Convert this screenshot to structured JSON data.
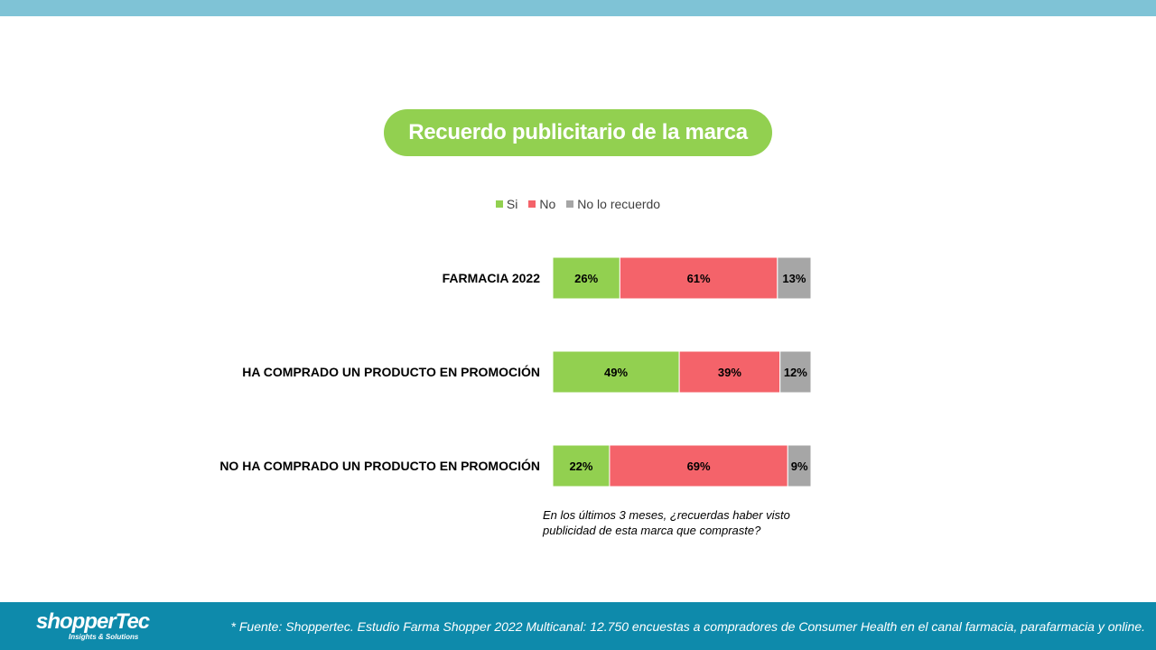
{
  "colors": {
    "si": "#92d050",
    "no": "#f4636a",
    "no_recuerdo": "#a6a6a6",
    "title_bg": "#92d050",
    "top_bar": "#7fc3d6",
    "footer_bg": "#0e8aab"
  },
  "title": "Recuerdo publicitario de la marca",
  "legend": {
    "si": "Si",
    "no": "No",
    "no_recuerdo": "No lo recuerdo"
  },
  "chart_data": {
    "type": "bar",
    "orientation": "horizontal",
    "stacked": true,
    "percent": true,
    "categories": [
      "FARMACIA 2022",
      "HA COMPRADO UN PRODUCTO EN PROMOCIÓN",
      "NO HA COMPRADO UN PRODUCTO EN PROMOCIÓN"
    ],
    "series": [
      {
        "name": "Si",
        "values": [
          26,
          49,
          22
        ],
        "labels": [
          "26%",
          "49%",
          "22%"
        ]
      },
      {
        "name": "No",
        "values": [
          61,
          39,
          69
        ],
        "labels": [
          "61%",
          "39%",
          "69%"
        ]
      },
      {
        "name": "No lo recuerdo",
        "values": [
          13,
          12,
          9
        ],
        "labels": [
          "13%",
          "12%",
          "9%"
        ]
      }
    ],
    "xlim": [
      0,
      100
    ],
    "legend_position": "top"
  },
  "question": "En los últimos 3 meses, ¿recuerdas haber visto publicidad de esta marca que compraste?",
  "footer": {
    "logo": "shopperTec",
    "logo_sub": "Insights & Solutions",
    "source": "* Fuente: Shoppertec. Estudio Farma Shopper 2022 Multicanal: 12.750 encuestas a compradores de Consumer Health en el canal farmacia, parafarmacia y online."
  }
}
